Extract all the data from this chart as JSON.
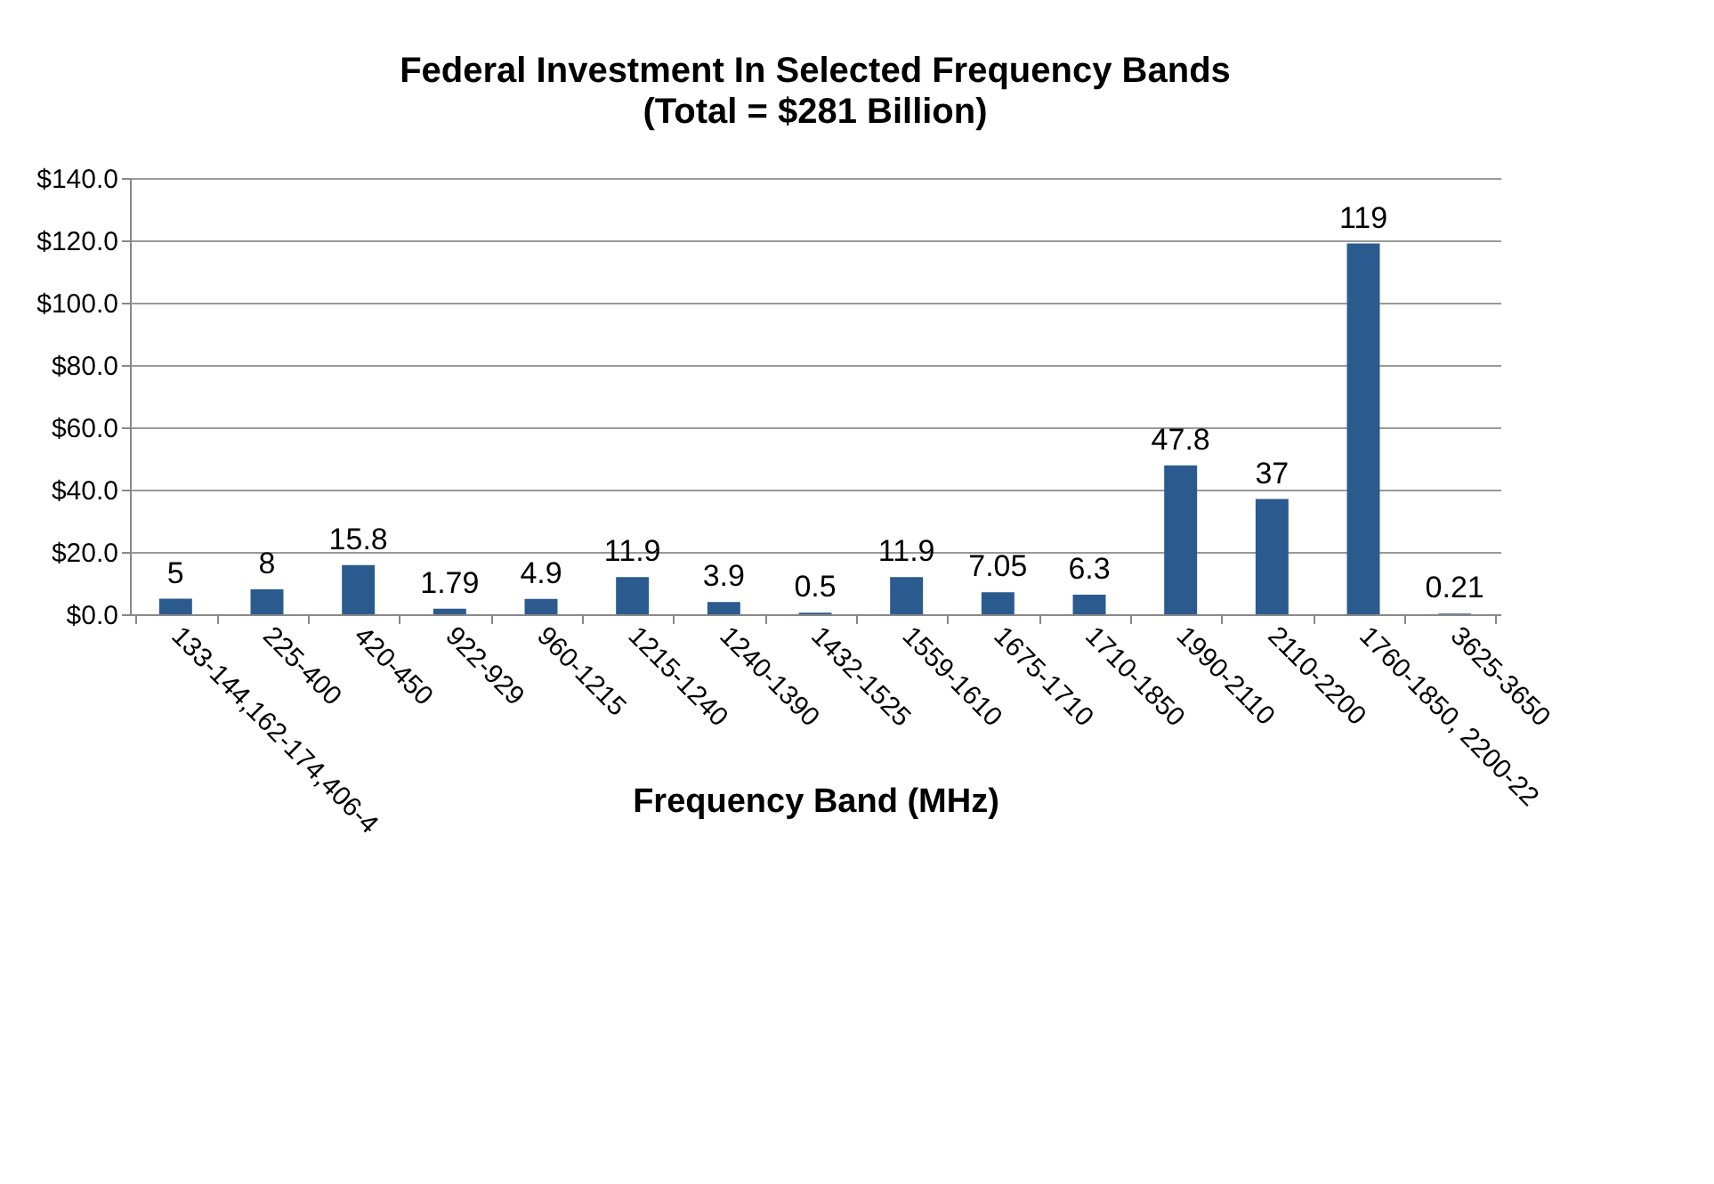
{
  "chart_data": {
    "type": "bar",
    "title": "Federal Investment In Selected Frequency Bands",
    "subtitle": "(Total = $281 Billion)",
    "xlabel": "Frequency Band (MHz)",
    "categories": [
      "133-144,162-174,406-4",
      "225-400",
      "420-450",
      "922-929",
      "960-1215",
      "1215-1240",
      "1240-1390",
      "1432-1525",
      "1559-1610",
      "1675-1710",
      "1710-1850",
      "1990-2110",
      "2110-2200",
      "1760-1850, 2200-22",
      "3625-3650"
    ],
    "values": [
      5,
      8,
      15.8,
      1.79,
      4.9,
      11.9,
      3.9,
      0.5,
      11.9,
      7.05,
      6.3,
      47.8,
      37,
      119,
      0.21
    ],
    "color": "#2b5b8e",
    "ylim": [
      0,
      140
    ],
    "yticks": [
      {
        "value": 0,
        "label": "$0.0"
      },
      {
        "value": 20,
        "label": "$20.0"
      },
      {
        "value": 40,
        "label": "$40.0"
      },
      {
        "value": 60,
        "label": "$60.0"
      },
      {
        "value": 80,
        "label": "$80.0"
      },
      {
        "value": 100,
        "label": "$100.0"
      },
      {
        "value": 120,
        "label": "$120.0"
      },
      {
        "value": 140,
        "label": "$140.0"
      }
    ],
    "grid": "y",
    "data_labels": true
  }
}
